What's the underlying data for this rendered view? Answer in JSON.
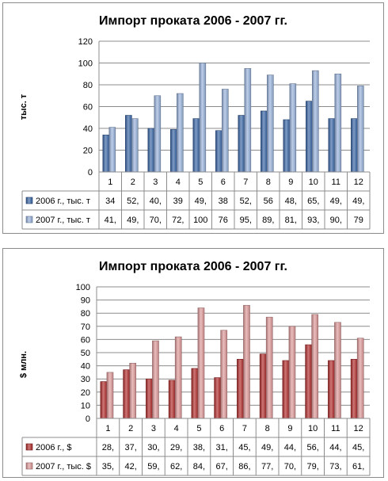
{
  "chart_data": [
    {
      "type": "bar",
      "title": "Импорт проката 2006 - 2007 гг.",
      "ylabel": "тыс. т",
      "xlabel": "",
      "ylim": [
        0,
        120
      ],
      "yticks": [
        0,
        20,
        40,
        60,
        80,
        100,
        120
      ],
      "grid": true,
      "legend": "table-bottom",
      "categories": [
        "1",
        "2",
        "3",
        "4",
        "5",
        "6",
        "7",
        "8",
        "9",
        "10",
        "11",
        "12"
      ],
      "series": [
        {
          "name": "2006 г., тыс. т",
          "values": [
            34,
            52,
            40,
            39,
            49,
            38,
            52,
            56,
            48,
            65,
            49,
            49
          ],
          "table_values": [
            "34",
            "52,",
            "40,",
            "39",
            "49,",
            "38",
            "52,",
            "56",
            "48,",
            "65,",
            "49,",
            "49,"
          ],
          "color": "#3a67a8"
        },
        {
          "name": "2007 г., тыс. т",
          "values": [
            41,
            49,
            70,
            72,
            100,
            76,
            95,
            89,
            81,
            93,
            90,
            79
          ],
          "table_values": [
            "41,",
            "49,",
            "70,",
            "72,",
            "100",
            "76",
            "95,",
            "89,",
            "81,",
            "93,",
            "90,",
            "79"
          ],
          "color": "#99b4dd"
        }
      ]
    },
    {
      "type": "bar",
      "title": "Импорт проката 2006 - 2007 гг.",
      "ylabel": "$ млн.",
      "xlabel": "",
      "ylim": [
        0,
        100
      ],
      "yticks": [
        0,
        10,
        20,
        30,
        40,
        50,
        60,
        70,
        80,
        90,
        100
      ],
      "grid": true,
      "legend": "table-bottom",
      "categories": [
        "1",
        "2",
        "3",
        "4",
        "5",
        "6",
        "7",
        "8",
        "9",
        "10",
        "11",
        "12"
      ],
      "series": [
        {
          "name": "2006 г., $",
          "values": [
            28,
            37,
            30,
            29,
            38,
            31,
            45,
            49,
            44,
            56,
            44,
            45
          ],
          "table_values": [
            "28,",
            "37,",
            "30,",
            "29,",
            "38,",
            "31,",
            "45,",
            "49,",
            "44,",
            "56,",
            "44,",
            "45,"
          ],
          "color": "#b32c2c"
        },
        {
          "name": "2007 г., тыс. $",
          "values": [
            35,
            42,
            59,
            62,
            84,
            67,
            86,
            77,
            70,
            79,
            73,
            61
          ],
          "table_values": [
            "35,",
            "42,",
            "59,",
            "62,",
            "84,",
            "67,",
            "86,",
            "77,",
            "70,",
            "79,",
            "73,",
            "61,"
          ],
          "color": "#e09a9a"
        }
      ]
    }
  ]
}
